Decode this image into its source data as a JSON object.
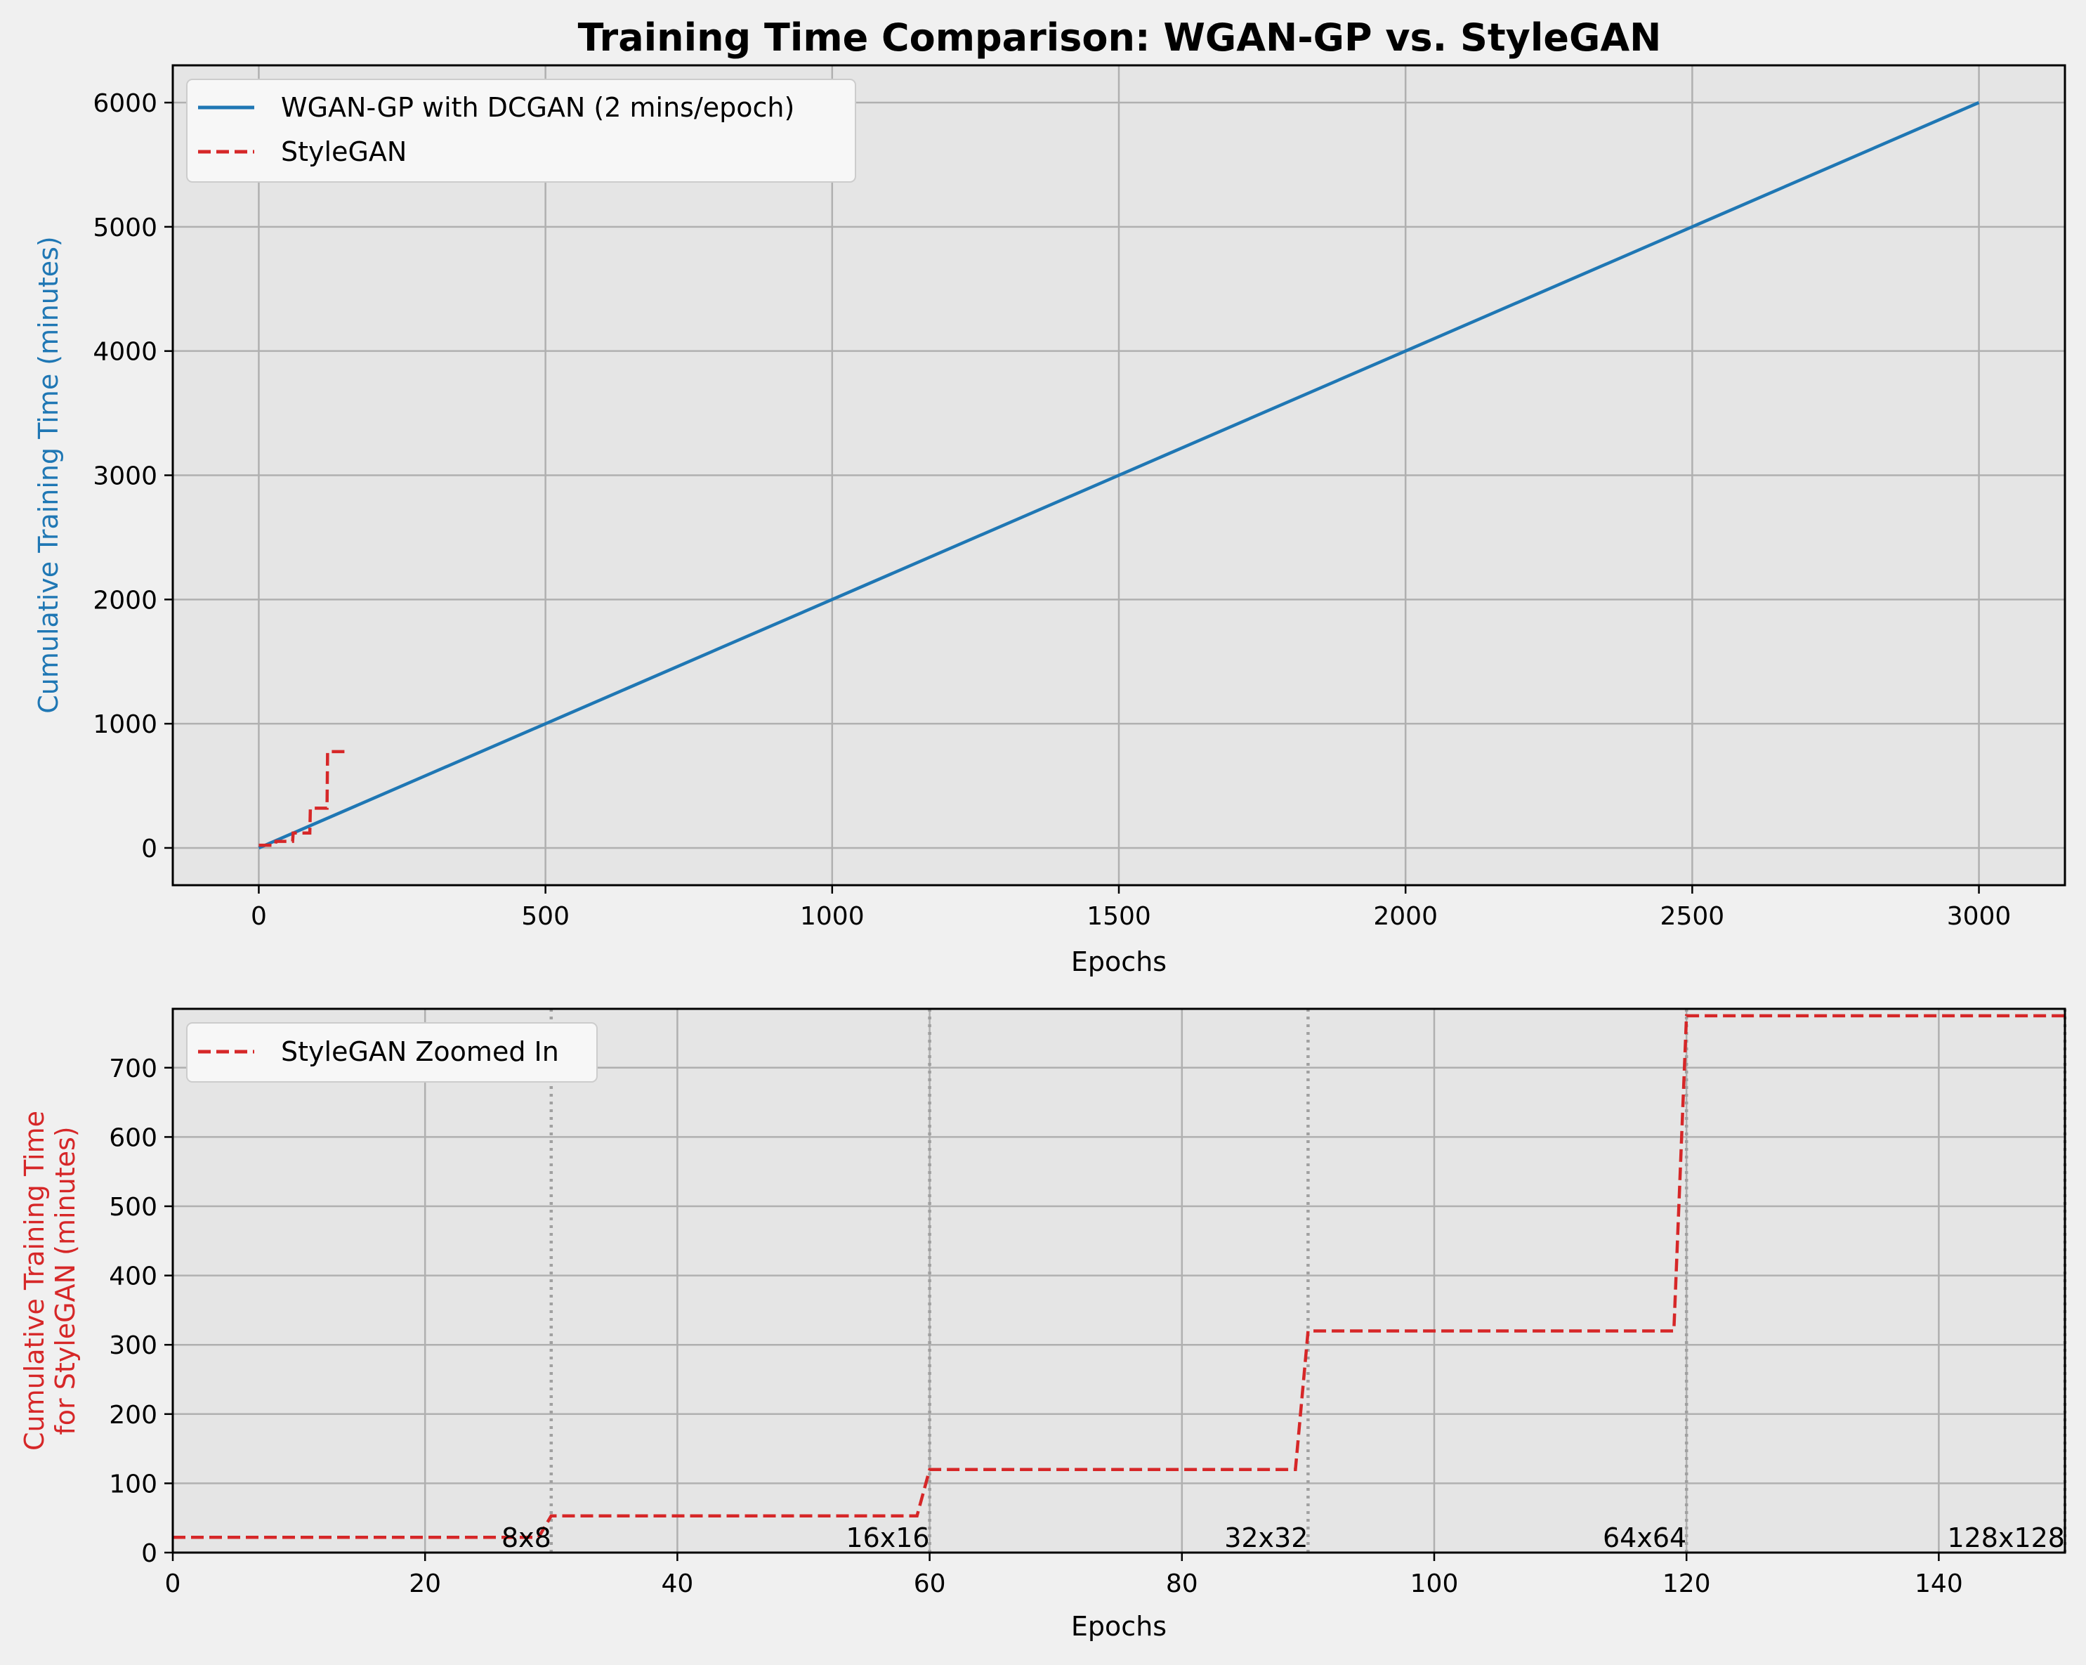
{
  "title": "Training Time Comparison: WGAN-GP vs. StyleGAN",
  "colors": {
    "wgan": "#1f77b4",
    "stylegan": "#d62728",
    "axes_bg": "#e5e5e5",
    "fig_bg": "#f0f0f0",
    "grid": "#b0b0b0"
  },
  "chart_data": [
    {
      "type": "line",
      "xlabel": "Epochs",
      "ylabel": "Cumulative Training Time (minutes)",
      "xlim": [
        -150,
        3150
      ],
      "ylim": [
        -300,
        6300
      ],
      "xticks": [
        0,
        500,
        1000,
        1500,
        2000,
        2500,
        3000
      ],
      "yticks": [
        0,
        1000,
        2000,
        3000,
        4000,
        5000,
        6000
      ],
      "grid": true,
      "legend_placement": "upper-left",
      "series": [
        {
          "name": "WGAN-GP with DCGAN (2 mins/epoch)",
          "style": "solid",
          "x": [
            0,
            3000
          ],
          "y": [
            0,
            6000
          ]
        },
        {
          "name": "StyleGAN",
          "style": "dashed",
          "x": [
            0,
            29,
            30,
            59,
            60,
            89,
            90,
            119,
            120,
            150
          ],
          "y": [
            22,
            22,
            53,
            53,
            120,
            120,
            320,
            320,
            775,
            775
          ]
        }
      ]
    },
    {
      "type": "line",
      "xlabel": "Epochs",
      "ylabel_lines": [
        "Cumulative Training Time",
        "for StyleGAN (minutes)"
      ],
      "xlim": [
        0,
        150
      ],
      "ylim": [
        0,
        785
      ],
      "xticks": [
        0,
        20,
        40,
        60,
        80,
        100,
        120,
        140
      ],
      "yticks": [
        0,
        100,
        200,
        300,
        400,
        500,
        600,
        700
      ],
      "grid": true,
      "legend_placement": "upper-left",
      "vlines": [
        30,
        60,
        90,
        120,
        150
      ],
      "series": [
        {
          "name": "StyleGAN Zoomed In",
          "style": "dashed",
          "x": [
            0,
            29,
            30,
            59,
            60,
            89,
            90,
            119,
            120,
            150
          ],
          "y": [
            22,
            22,
            53,
            53,
            120,
            120,
            320,
            320,
            775,
            775
          ]
        }
      ],
      "annotations": [
        {
          "text": "8x8",
          "x": 30
        },
        {
          "text": "16x16",
          "x": 60
        },
        {
          "text": "32x32",
          "x": 90
        },
        {
          "text": "64x64",
          "x": 120
        },
        {
          "text": "128x128",
          "x": 150
        }
      ]
    }
  ]
}
